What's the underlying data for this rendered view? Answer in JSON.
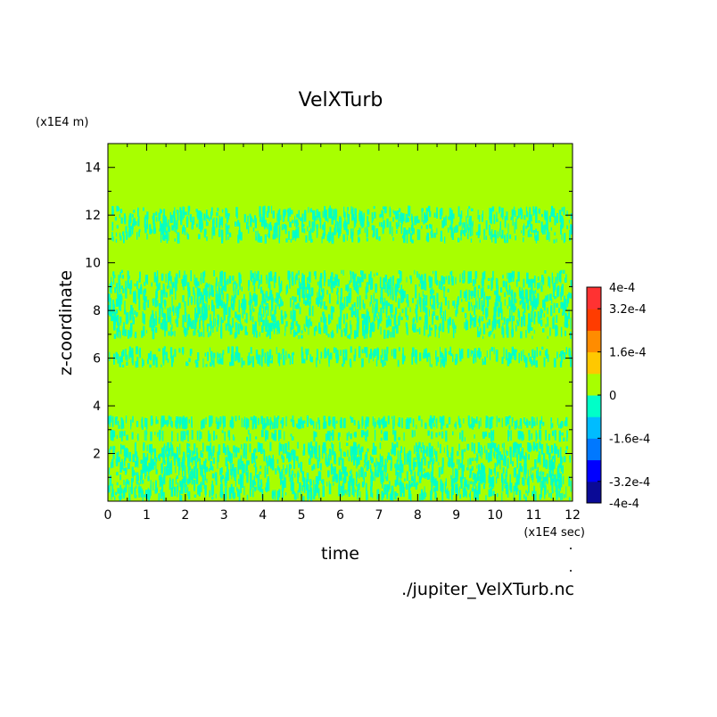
{
  "chart_data": {
    "type": "heatmap",
    "title": "VelXTurb",
    "xlabel": "time",
    "ylabel": "z-coordinate",
    "x_unit": "(x1E4 sec)",
    "y_unit": "(x1E4 m)",
    "source": "./jupiter_VelXTurb.nc",
    "xlim": [
      0,
      12
    ],
    "ylim": [
      0,
      15
    ],
    "x_ticks": [
      "0",
      "1",
      "2",
      "3",
      "4",
      "5",
      "6",
      "7",
      "8",
      "9",
      "10",
      "11",
      "12"
    ],
    "y_ticks": [
      "2",
      "4",
      "6",
      "8",
      "10",
      "12",
      "14"
    ],
    "grid": false,
    "background_level": "0",
    "background_color": "#a8ff00",
    "pattern_color": "#00ffc8",
    "turbulent_bands": [
      {
        "z_min": 0.0,
        "z_max": 2.5,
        "density": 0.55
      },
      {
        "z_min": 2.5,
        "z_max": 3.0,
        "density": 0.3
      },
      {
        "z_min": 3.0,
        "z_max": 3.6,
        "density": 0.5
      },
      {
        "z_min": 5.6,
        "z_max": 6.5,
        "density": 0.35
      },
      {
        "z_min": 6.8,
        "z_max": 9.7,
        "density": 0.5
      },
      {
        "z_min": 10.8,
        "z_max": 12.4,
        "density": 0.45
      }
    ],
    "colorbar": {
      "vmin": -0.0004,
      "vmax": 0.0004,
      "tick_labels": [
        "4e-4",
        "3.2e-4",
        "1.6e-4",
        "0",
        "-1.6e-4",
        "-3.2e-4",
        "-4e-4"
      ],
      "tick_values": [
        0.0004,
        0.00032,
        0.00016,
        0,
        -0.00016,
        -0.00032,
        -0.0004
      ],
      "colors": [
        "#0a0a96",
        "#0000ff",
        "#0078ff",
        "#00bcff",
        "#00ffc8",
        "#a8ff00",
        "#ffc800",
        "#ff8c00",
        "#ff3c00",
        "#ff3232"
      ]
    }
  }
}
